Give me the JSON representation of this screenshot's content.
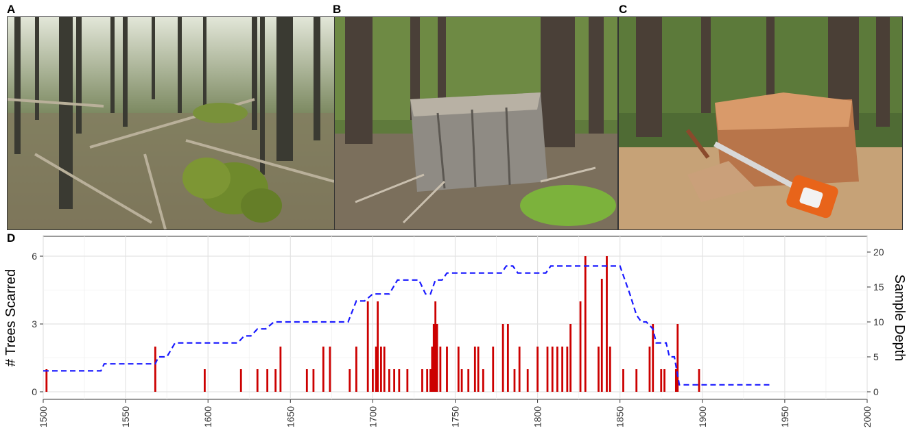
{
  "panels": {
    "a": "A",
    "b": "B",
    "c": "C",
    "d": "D"
  },
  "photos": [
    {
      "panel": "A",
      "scene": "open conifer forest with fallen logs and moss-covered boulders"
    },
    {
      "panel": "B",
      "scene": "weathered grey tree stump in forest"
    },
    {
      "panel": "C",
      "scene": "freshly cut stump with orange chainsaw and sawdust"
    }
  ],
  "chart_data": {
    "type": "bar",
    "xlabel": "",
    "ylabel": "# Trees Scarred",
    "y2label": "Sample Depth",
    "xlim": [
      1500,
      2000
    ],
    "ylim": [
      0,
      6
    ],
    "y2lim": [
      0,
      20
    ],
    "x_ticks": [
      1500,
      1550,
      1600,
      1650,
      1700,
      1750,
      1800,
      1850,
      1900,
      1950,
      2000
    ],
    "y_ticks": [
      0,
      3,
      6
    ],
    "y2_ticks": [
      0,
      5,
      10,
      15,
      20
    ],
    "grid": true,
    "bar_color": "#cc0000",
    "line_color": "#1a1aff",
    "scars": [
      [
        1502,
        1
      ],
      [
        1568,
        2
      ],
      [
        1598,
        1
      ],
      [
        1620,
        1
      ],
      [
        1630,
        1
      ],
      [
        1636,
        1
      ],
      [
        1641,
        1
      ],
      [
        1644,
        2
      ],
      [
        1660,
        1
      ],
      [
        1664,
        1
      ],
      [
        1670,
        2
      ],
      [
        1674,
        2
      ],
      [
        1686,
        1
      ],
      [
        1690,
        2
      ],
      [
        1697,
        4
      ],
      [
        1700,
        1
      ],
      [
        1702,
        2
      ],
      [
        1703,
        4
      ],
      [
        1705,
        2
      ],
      [
        1707,
        2
      ],
      [
        1710,
        1
      ],
      [
        1713,
        1
      ],
      [
        1716,
        1
      ],
      [
        1721,
        1
      ],
      [
        1730,
        1
      ],
      [
        1733,
        1
      ],
      [
        1735,
        1
      ],
      [
        1736,
        2
      ],
      [
        1737,
        3
      ],
      [
        1738,
        4
      ],
      [
        1739,
        3
      ],
      [
        1741,
        2
      ],
      [
        1745,
        2
      ],
      [
        1752,
        2
      ],
      [
        1754,
        1
      ],
      [
        1758,
        1
      ],
      [
        1762,
        2
      ],
      [
        1764,
        2
      ],
      [
        1767,
        1
      ],
      [
        1773,
        2
      ],
      [
        1779,
        3
      ],
      [
        1782,
        3
      ],
      [
        1786,
        1
      ],
      [
        1789,
        2
      ],
      [
        1794,
        1
      ],
      [
        1800,
        2
      ],
      [
        1806,
        2
      ],
      [
        1809,
        2
      ],
      [
        1812,
        2
      ],
      [
        1815,
        2
      ],
      [
        1818,
        2
      ],
      [
        1820,
        3
      ],
      [
        1826,
        4
      ],
      [
        1829,
        6
      ],
      [
        1837,
        2
      ],
      [
        1839,
        5
      ],
      [
        1842,
        6
      ],
      [
        1844,
        2
      ],
      [
        1852,
        1
      ],
      [
        1860,
        1
      ],
      [
        1868,
        2
      ],
      [
        1870,
        3
      ],
      [
        1875,
        1
      ],
      [
        1877,
        1
      ],
      [
        1884,
        1
      ],
      [
        1885,
        3
      ],
      [
        1898,
        1
      ]
    ],
    "sample_depth": [
      [
        1500,
        3
      ],
      [
        1535,
        3
      ],
      [
        1537,
        4
      ],
      [
        1562,
        4
      ],
      [
        1565,
        4
      ],
      [
        1568,
        4
      ],
      [
        1570,
        5
      ],
      [
        1575,
        5
      ],
      [
        1580,
        7
      ],
      [
        1618,
        7
      ],
      [
        1622,
        8
      ],
      [
        1626,
        8
      ],
      [
        1630,
        9
      ],
      [
        1635,
        9
      ],
      [
        1640,
        10
      ],
      [
        1685,
        10
      ],
      [
        1690,
        13
      ],
      [
        1695,
        13
      ],
      [
        1700,
        14
      ],
      [
        1710,
        14
      ],
      [
        1715,
        16
      ],
      [
        1728,
        16
      ],
      [
        1732,
        14
      ],
      [
        1735,
        14
      ],
      [
        1738,
        16
      ],
      [
        1742,
        16
      ],
      [
        1745,
        17
      ],
      [
        1778,
        17
      ],
      [
        1781,
        18
      ],
      [
        1785,
        18
      ],
      [
        1788,
        17
      ],
      [
        1805,
        17
      ],
      [
        1808,
        18
      ],
      [
        1850,
        18
      ],
      [
        1856,
        14
      ],
      [
        1860,
        11
      ],
      [
        1863,
        10
      ],
      [
        1866,
        10
      ],
      [
        1870,
        9
      ],
      [
        1872,
        7
      ],
      [
        1878,
        7
      ],
      [
        1880,
        5
      ],
      [
        1883,
        5
      ],
      [
        1886,
        1
      ],
      [
        1942,
        1
      ]
    ]
  }
}
